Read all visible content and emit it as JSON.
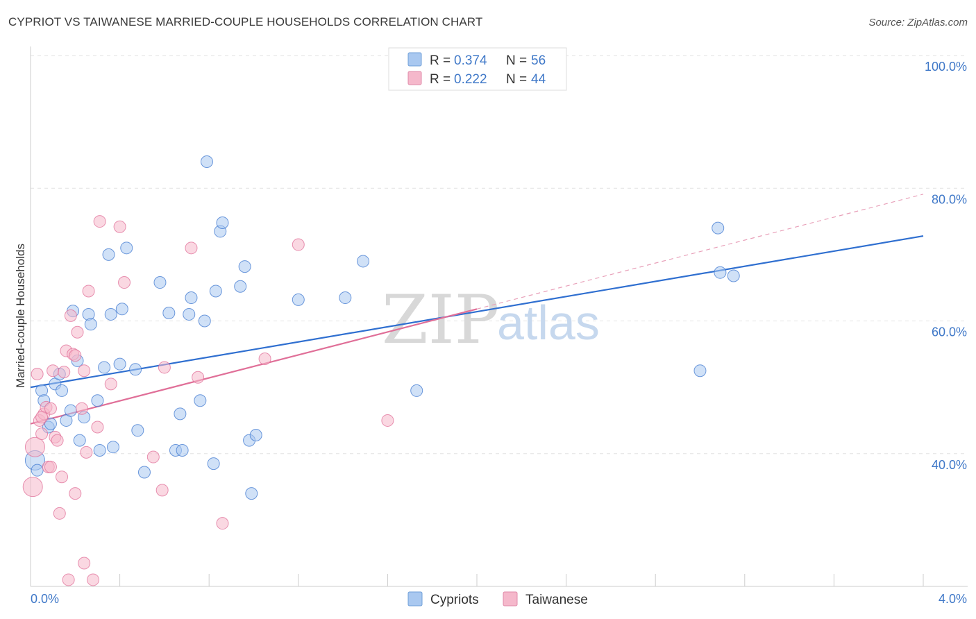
{
  "title": "CYPRIOT VS TAIWANESE MARRIED-COUPLE HOUSEHOLDS CORRELATION CHART",
  "source": "Source: ZipAtlas.com",
  "watermark": {
    "part1": "ZIP",
    "part2": "atlas"
  },
  "legend_top": {
    "r_label": "R =",
    "n_label": "N =",
    "rows": [
      {
        "r": "0.374",
        "n": "56",
        "color": "#a9c8f0"
      },
      {
        "r": "0.222",
        "n": "44",
        "color": "#f5b8cb"
      }
    ]
  },
  "legend_bottom": [
    {
      "label": "Cypriots",
      "color": "#a9c8f0"
    },
    {
      "label": "Taiwanese",
      "color": "#f5b8cb"
    }
  ],
  "chart_data": {
    "type": "scatter",
    "title": "CYPRIOT VS TAIWANESE MARRIED-COUPLE HOUSEHOLDS CORRELATION CHART",
    "xlabel": "",
    "ylabel": "Married-couple Households",
    "xlim": [
      0,
      4.0
    ],
    "ylim": [
      20,
      100
    ],
    "x_tick_labels": [
      "0.0%",
      "4.0%"
    ],
    "y_ticks": [
      40,
      60,
      80,
      100
    ],
    "y_tick_labels": [
      "40.0%",
      "60.0%",
      "80.0%",
      "100.0%"
    ],
    "grid": true,
    "legend_position": "top-center",
    "series": [
      {
        "name": "Cypriots",
        "color": "#3f78d0",
        "fill": "#a9c8f0",
        "r": 0.374,
        "n": 56,
        "trend": {
          "x0": 0.0,
          "y0": 50.0,
          "x1": 4.0,
          "y1": 72.8
        },
        "points": [
          [
            0.02,
            39.0
          ],
          [
            0.03,
            37.5
          ],
          [
            0.05,
            49.5
          ],
          [
            0.06,
            48.0
          ],
          [
            0.08,
            44.0
          ],
          [
            0.09,
            44.5
          ],
          [
            0.11,
            50.5
          ],
          [
            0.13,
            52.0
          ],
          [
            0.14,
            49.5
          ],
          [
            0.16,
            45.0
          ],
          [
            0.18,
            46.5
          ],
          [
            0.19,
            61.5
          ],
          [
            0.21,
            54.0
          ],
          [
            0.22,
            42.0
          ],
          [
            0.24,
            45.5
          ],
          [
            0.26,
            61.0
          ],
          [
            0.27,
            59.5
          ],
          [
            0.3,
            48.0
          ],
          [
            0.31,
            40.5
          ],
          [
            0.33,
            53.0
          ],
          [
            0.35,
            70.0
          ],
          [
            0.36,
            61.0
          ],
          [
            0.37,
            41.0
          ],
          [
            0.4,
            53.5
          ],
          [
            0.41,
            61.8
          ],
          [
            0.43,
            71.0
          ],
          [
            0.47,
            52.7
          ],
          [
            0.48,
            43.5
          ],
          [
            0.51,
            37.2
          ],
          [
            0.58,
            65.8
          ],
          [
            0.62,
            61.2
          ],
          [
            0.65,
            40.5
          ],
          [
            0.67,
            46.0
          ],
          [
            0.68,
            40.5
          ],
          [
            0.71,
            61.0
          ],
          [
            0.72,
            63.5
          ],
          [
            0.76,
            48.0
          ],
          [
            0.78,
            60.0
          ],
          [
            0.79,
            84.0
          ],
          [
            0.82,
            38.5
          ],
          [
            0.83,
            64.5
          ],
          [
            0.85,
            73.5
          ],
          [
            0.86,
            74.8
          ],
          [
            0.94,
            65.2
          ],
          [
            0.96,
            68.2
          ],
          [
            0.98,
            42.0
          ],
          [
            0.99,
            34.0
          ],
          [
            1.01,
            42.8
          ],
          [
            1.2,
            63.2
          ],
          [
            1.41,
            63.5
          ],
          [
            1.49,
            69.0
          ],
          [
            1.73,
            49.5
          ],
          [
            3.0,
            52.5
          ],
          [
            3.08,
            74.0
          ],
          [
            3.09,
            67.3
          ],
          [
            3.15,
            66.8
          ]
        ]
      },
      {
        "name": "Taiwanese",
        "color": "#e06f98",
        "fill": "#f5b8cb",
        "r": 0.222,
        "n": 44,
        "trend": {
          "x0": 0.0,
          "y0": 44.5,
          "x1": 2.0,
          "y1": 61.8
        },
        "points": [
          [
            0.01,
            35.0
          ],
          [
            0.02,
            41.0
          ],
          [
            0.03,
            52.0
          ],
          [
            0.04,
            45.0
          ],
          [
            0.05,
            43.0
          ],
          [
            0.06,
            46.0
          ],
          [
            0.07,
            47.0
          ],
          [
            0.08,
            38.0
          ],
          [
            0.09,
            46.8
          ],
          [
            0.1,
            52.5
          ],
          [
            0.11,
            42.5
          ],
          [
            0.12,
            42.0
          ],
          [
            0.13,
            31.0
          ],
          [
            0.14,
            36.5
          ],
          [
            0.15,
            52.3
          ],
          [
            0.16,
            55.5
          ],
          [
            0.17,
            21.0
          ],
          [
            0.18,
            60.8
          ],
          [
            0.19,
            55.0
          ],
          [
            0.2,
            54.8
          ],
          [
            0.2,
            34.0
          ],
          [
            0.21,
            58.3
          ],
          [
            0.23,
            46.8
          ],
          [
            0.24,
            52.5
          ],
          [
            0.24,
            23.5
          ],
          [
            0.25,
            40.2
          ],
          [
            0.26,
            64.5
          ],
          [
            0.28,
            21.0
          ],
          [
            0.3,
            44.0
          ],
          [
            0.31,
            75.0
          ],
          [
            0.36,
            50.5
          ],
          [
            0.4,
            74.2
          ],
          [
            0.42,
            65.8
          ],
          [
            0.55,
            39.5
          ],
          [
            0.59,
            34.5
          ],
          [
            0.6,
            53.0
          ],
          [
            0.72,
            71.0
          ],
          [
            0.75,
            51.5
          ],
          [
            0.86,
            29.5
          ],
          [
            1.05,
            54.3
          ],
          [
            1.2,
            71.5
          ],
          [
            1.6,
            45.0
          ],
          [
            0.09,
            38.0
          ],
          [
            0.05,
            45.5
          ]
        ]
      }
    ]
  }
}
